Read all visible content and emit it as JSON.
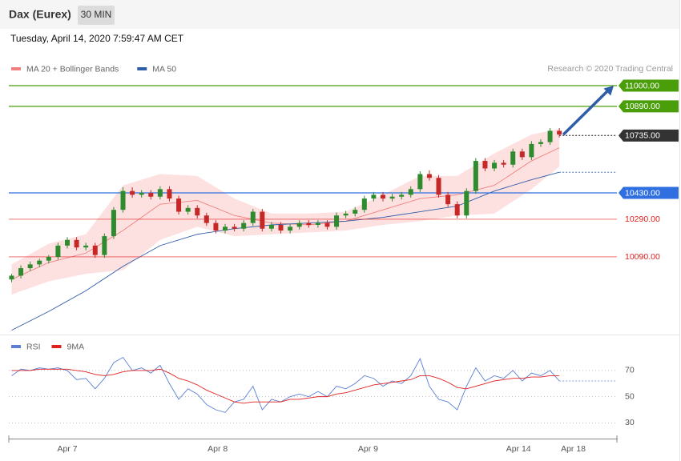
{
  "header": {
    "title": "Dax (Eurex)",
    "timeframe": "30 MIN",
    "datetime": "Tuesday, April 14, 2020 7:59:47 AM CET"
  },
  "chart_data": [
    {
      "type": "candlestick",
      "credit": "Research © 2020 Trading Central",
      "xlim": [
        -0.3,
        65.2
      ],
      "ylim": [
        9690,
        11200
      ],
      "up_color": "#2e8b2e",
      "down_color": "#c62828",
      "open": [
        9970,
        9990,
        10030,
        10050,
        10070,
        10090,
        10150,
        10180,
        10140,
        10150,
        10100,
        10200,
        10340,
        10440,
        10420,
        10430,
        10410,
        10450,
        10400,
        10330,
        10350,
        10310,
        10270,
        10230,
        10250,
        10240,
        10270,
        10330,
        10240,
        10260,
        10230,
        10250,
        10270,
        10260,
        10270,
        10250,
        10310,
        10320,
        10340,
        10400,
        10420,
        10400,
        10410,
        10420,
        10450,
        10530,
        10510,
        10420,
        10370,
        10310,
        10440,
        10600,
        10560,
        10590,
        10580,
        10650,
        10620,
        10690,
        10700,
        10760
      ],
      "high": [
        10000,
        10045,
        10065,
        10080,
        10100,
        10165,
        10195,
        10195,
        10165,
        10165,
        10215,
        10355,
        10460,
        10460,
        10445,
        10445,
        10465,
        10465,
        10415,
        10365,
        10365,
        10325,
        10285,
        10265,
        10265,
        10285,
        10345,
        10345,
        10275,
        10275,
        10265,
        10285,
        10285,
        10285,
        10285,
        10325,
        10335,
        10355,
        10415,
        10435,
        10435,
        10425,
        10435,
        10465,
        10545,
        10550,
        10525,
        10435,
        10385,
        10455,
        10615,
        10615,
        10605,
        10605,
        10665,
        10665,
        10705,
        10715,
        10775,
        10775
      ],
      "low": [
        9955,
        9975,
        10015,
        10035,
        10055,
        10075,
        10135,
        10125,
        10125,
        10085,
        10085,
        10185,
        10325,
        10405,
        10405,
        10395,
        10395,
        10385,
        10315,
        10315,
        10295,
        10255,
        10215,
        10215,
        10225,
        10225,
        10255,
        10225,
        10225,
        10215,
        10215,
        10235,
        10245,
        10245,
        10235,
        10235,
        10295,
        10305,
        10325,
        10385,
        10385,
        10385,
        10395,
        10405,
        10435,
        10495,
        10405,
        10355,
        10295,
        10295,
        10425,
        10545,
        10545,
        10565,
        10565,
        10605,
        10605,
        10675,
        10685,
        10725
      ],
      "close": [
        9990,
        10030,
        10050,
        10070,
        10090,
        10150,
        10180,
        10140,
        10150,
        10100,
        10200,
        10340,
        10440,
        10420,
        10430,
        10410,
        10450,
        10400,
        10330,
        10350,
        10310,
        10270,
        10230,
        10250,
        10240,
        10270,
        10330,
        10240,
        10260,
        10230,
        10250,
        10270,
        10260,
        10270,
        10250,
        10310,
        10320,
        10340,
        10400,
        10420,
        10400,
        10410,
        10420,
        10450,
        10530,
        10510,
        10420,
        10370,
        10310,
        10440,
        10600,
        10560,
        10590,
        10580,
        10650,
        10620,
        10690,
        10700,
        10760,
        10740
      ],
      "series": [
        {
          "name": "MA 20 + Bollinger Bands",
          "color": "#f08080",
          "band_color": "#fde0e0",
          "x": [
            0,
            4,
            8,
            12,
            16,
            20,
            24,
            28,
            32,
            36,
            40,
            44,
            48,
            52,
            56,
            59
          ],
          "values": [
            9970,
            10060,
            10110,
            10230,
            10370,
            10390,
            10310,
            10270,
            10260,
            10280,
            10340,
            10400,
            10420,
            10470,
            10600,
            10670
          ],
          "upper": [
            10050,
            10160,
            10210,
            10470,
            10530,
            10520,
            10400,
            10320,
            10320,
            10330,
            10420,
            10520,
            10520,
            10640,
            10740,
            10770
          ],
          "lower": [
            9890,
            9960,
            10000,
            10020,
            10180,
            10250,
            10200,
            10210,
            10220,
            10230,
            10260,
            10280,
            10310,
            10320,
            10450,
            10570
          ]
        },
        {
          "name": "MA 50",
          "color": "#2f5da8",
          "x": [
            0,
            4,
            8,
            12,
            16,
            20,
            24,
            28,
            32,
            36,
            40,
            44,
            48,
            52,
            56,
            59
          ],
          "values": [
            9700,
            9800,
            9910,
            10040,
            10150,
            10210,
            10240,
            10260,
            10270,
            10280,
            10300,
            10330,
            10360,
            10440,
            10500,
            10540
          ]
        }
      ],
      "levels": [
        {
          "value": 11000,
          "label": "11000.00",
          "color": "#4a9e0a",
          "kind": "box",
          "line": "solid"
        },
        {
          "value": 10890,
          "label": "10890.00",
          "color": "#4a9e0a",
          "kind": "box",
          "line": "solid"
        },
        {
          "value": 10735,
          "label": "10735.00",
          "color": "#333333",
          "kind": "box",
          "line": "dotted"
        },
        {
          "value": 10430,
          "label": "10430.00",
          "color": "#2f6fe0",
          "kind": "box",
          "line": "solid"
        },
        {
          "value": 10290,
          "label": "10290.00",
          "color": "#e02020",
          "kind": "text",
          "line": "solid"
        },
        {
          "value": 10090,
          "label": "10090.00",
          "color": "#e02020",
          "kind": "text",
          "line": "solid"
        }
      ],
      "arrow_color": "#2f5da8"
    },
    {
      "type": "line",
      "xlim": [
        -0.3,
        65.2
      ],
      "ylim": [
        18,
        84
      ],
      "yticks": [
        30,
        50,
        70
      ],
      "grid": true,
      "xticks": [
        {
          "value": 6,
          "label": "Apr 7"
        },
        {
          "value": 22.2,
          "label": "Apr 8"
        },
        {
          "value": 38.4,
          "label": "Apr 9"
        },
        {
          "value": 54.6,
          "label": "Apr 14"
        },
        {
          "value": 60.5,
          "label": "Apr 18"
        }
      ],
      "series": [
        {
          "name": "RSI",
          "color": "#5b7fd4",
          "values": [
            66,
            71,
            70,
            72,
            71,
            72,
            70,
            63,
            64,
            56,
            64,
            76,
            80,
            70,
            72,
            68,
            74,
            60,
            48,
            56,
            52,
            44,
            40,
            38,
            46,
            48,
            58,
            40,
            48,
            46,
            50,
            52,
            50,
            54,
            50,
            58,
            56,
            60,
            66,
            64,
            58,
            62,
            60,
            66,
            79,
            58,
            48,
            46,
            40,
            58,
            72,
            62,
            66,
            64,
            70,
            62,
            68,
            66,
            70,
            62
          ]
        },
        {
          "name": "9MA",
          "color": "#e02020",
          "values": [
            70,
            70,
            70,
            71,
            71,
            71,
            71,
            70,
            69,
            67,
            66,
            67,
            69,
            70,
            70,
            70,
            71,
            68,
            64,
            62,
            59,
            55,
            52,
            49,
            46,
            45,
            46,
            46,
            46,
            46,
            48,
            48,
            49,
            50,
            50,
            52,
            53,
            55,
            57,
            59,
            60,
            61,
            62,
            63,
            66,
            66,
            64,
            61,
            57,
            56,
            58,
            60,
            62,
            63,
            64,
            64,
            65,
            65,
            66,
            66
          ]
        }
      ]
    }
  ]
}
